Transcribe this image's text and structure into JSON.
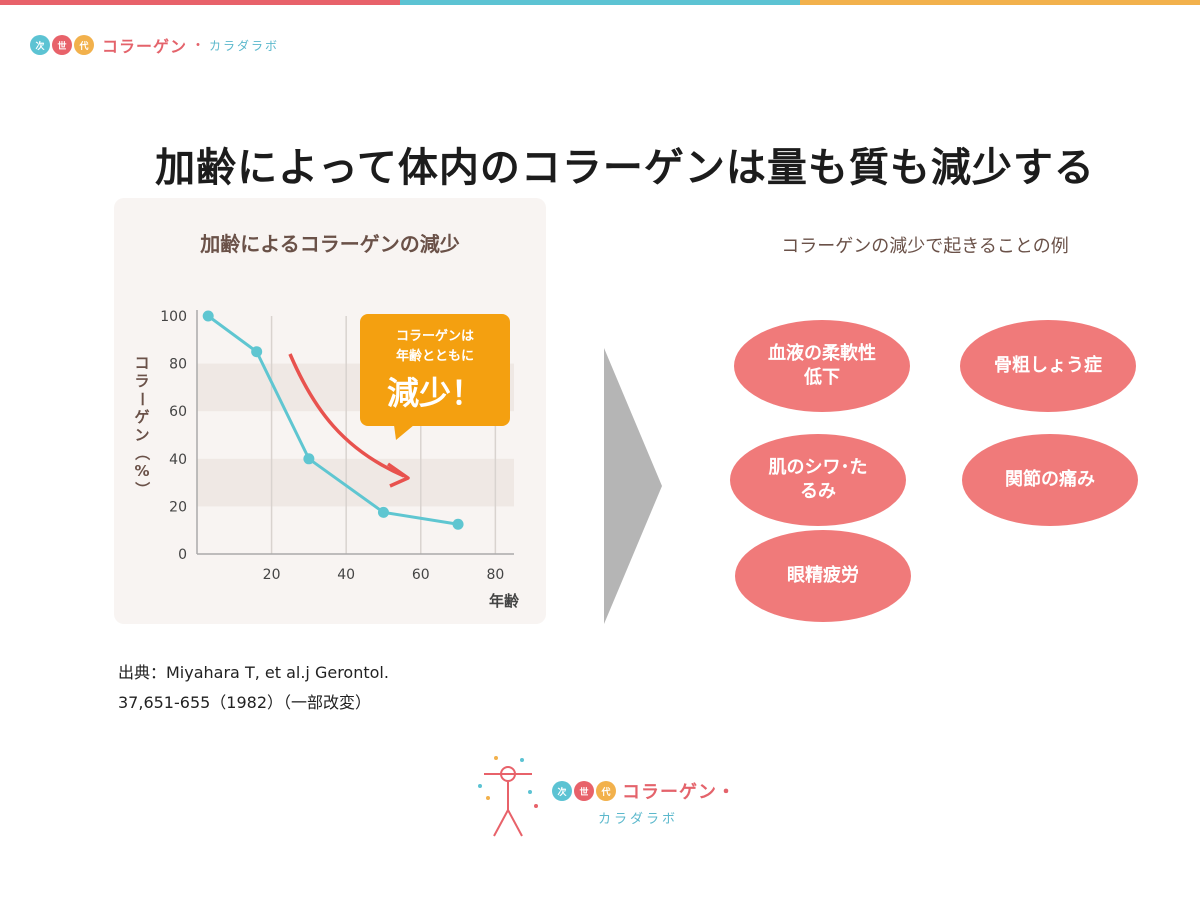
{
  "header": {
    "top_bar_colors": [
      "#e8626a",
      "#5cc3d3",
      "#f2b14c"
    ],
    "brand_dots": [
      {
        "label": "次",
        "color": "#5cc3d3"
      },
      {
        "label": "世",
        "color": "#e8626a"
      },
      {
        "label": "代",
        "color": "#f2b14c"
      }
    ],
    "brand_main": "コラーゲン",
    "brand_sep": "・",
    "brand_sub": "カラダラボ"
  },
  "title": "加齢によって体内のコラーゲンは量も質も減少する",
  "chart_data": {
    "type": "line",
    "title": "加齢によるコラーゲンの減少",
    "xlabel": "年齢",
    "ylabel": "コラーゲン（%）",
    "x": [
      3,
      16,
      30,
      50,
      70
    ],
    "y": [
      100,
      85,
      40,
      17.5,
      12.5
    ],
    "xlim": [
      0,
      85
    ],
    "ylim": [
      0,
      100
    ],
    "xticks": [
      20,
      40,
      60,
      80
    ],
    "yticks": [
      0,
      20,
      40,
      60,
      80,
      100
    ],
    "grid": true,
    "line_color": "#5fc6d1",
    "callout": {
      "line1": "コラーゲンは",
      "line2": "年齢とともに",
      "big": "減少！",
      "color": "#f4a010"
    },
    "trend_arrow_color": "#e8524e"
  },
  "source": {
    "line1": "出典：Miyahara T, et al.j Gerontol.",
    "line2": "37,651-655（1982）（一部改変）"
  },
  "examples": {
    "title": "コラーゲンの減少で起きることの例",
    "color": "#f07a7a",
    "items": [
      {
        "label": "血液の柔軟性低下"
      },
      {
        "label": "骨粗しょう症"
      },
      {
        "label": "肌のシワ･たるみ"
      },
      {
        "label": "関節の痛み"
      },
      {
        "label": "眼精疲労"
      }
    ]
  },
  "footer": {
    "dots": [
      "次",
      "世",
      "代"
    ],
    "brand_main": "コラーゲン・",
    "brand_sub": "カラダラボ"
  }
}
